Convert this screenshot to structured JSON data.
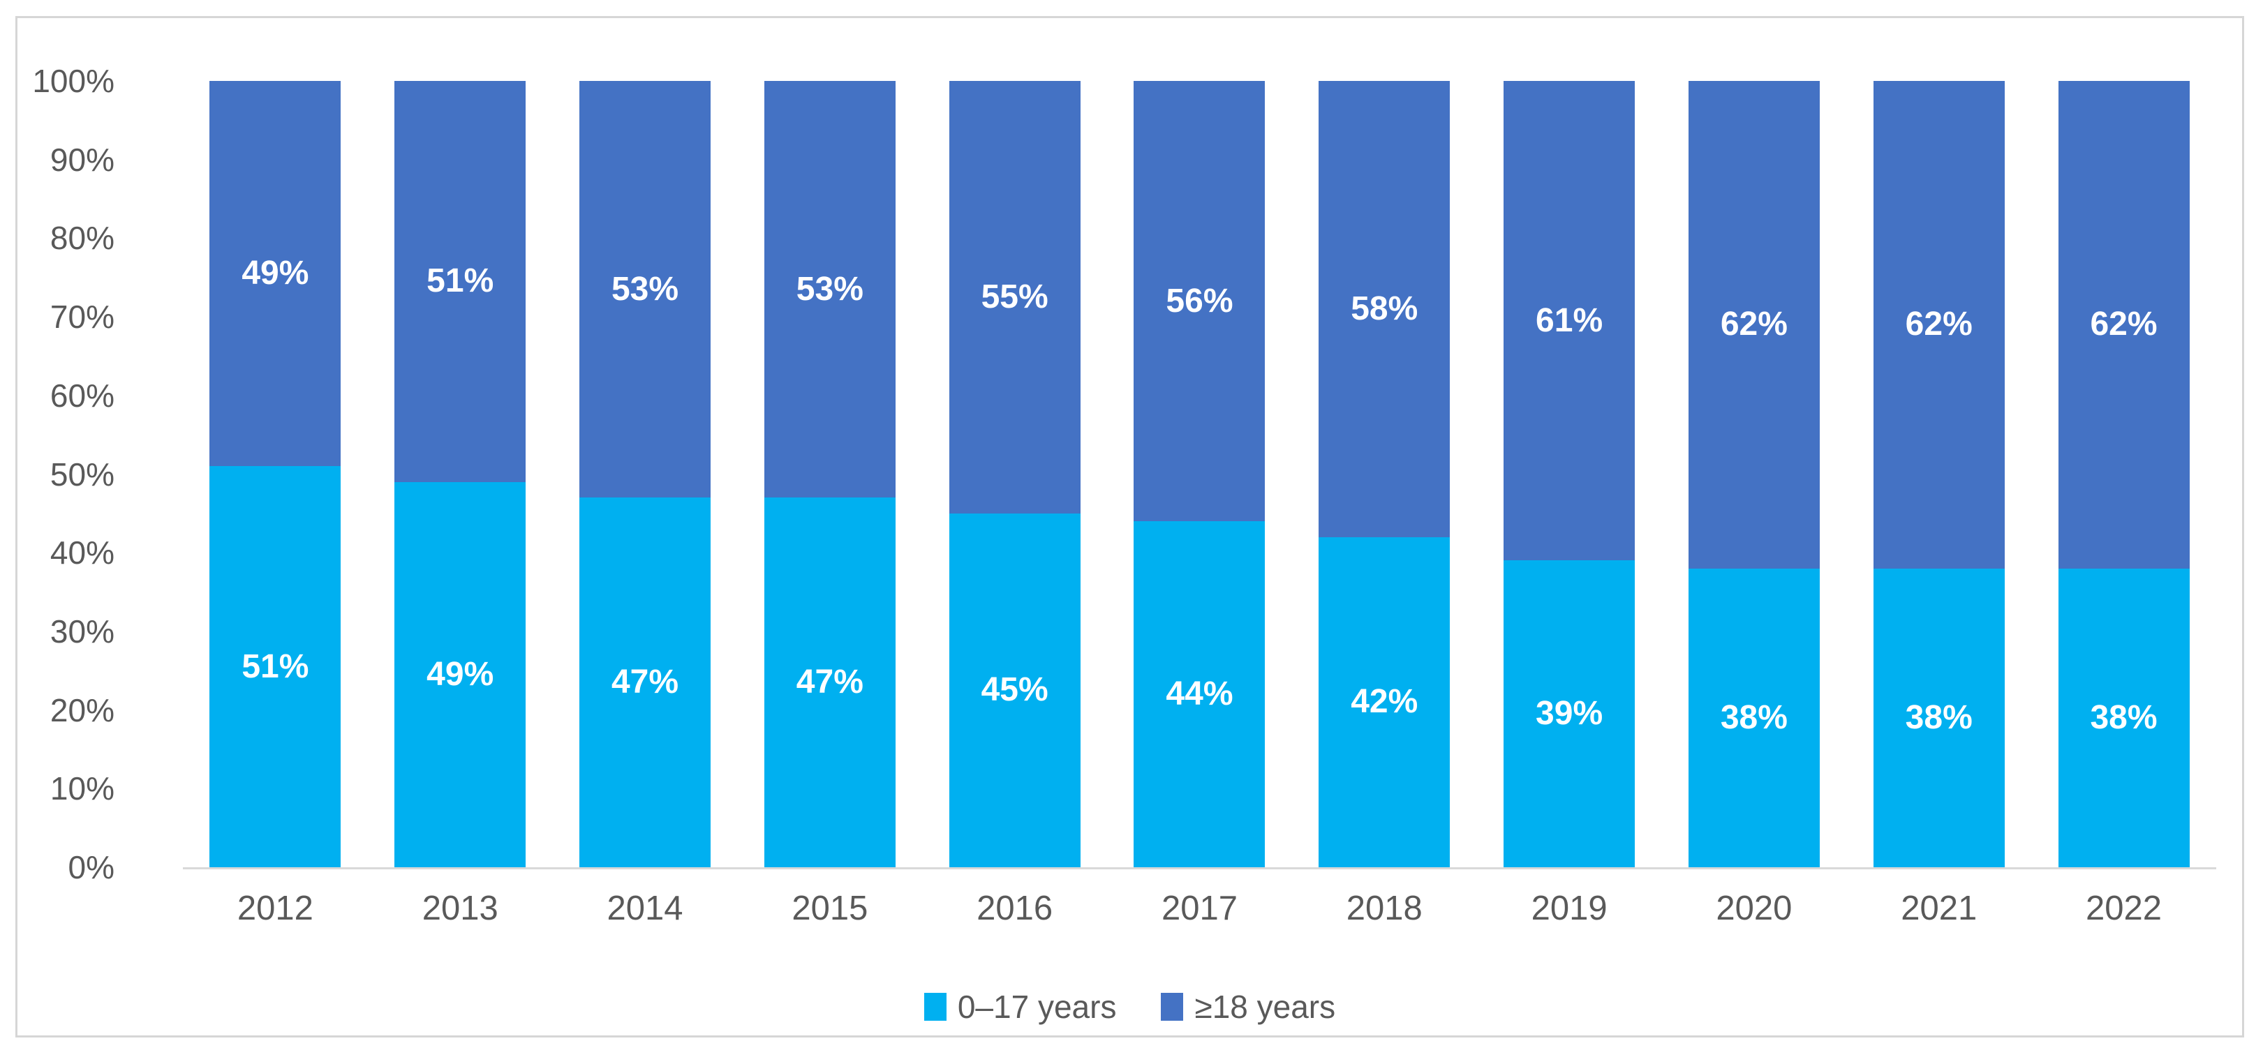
{
  "chart_data": {
    "type": "bar",
    "variant": "stacked-100",
    "title": "",
    "xlabel": "",
    "ylabel": "",
    "categories": [
      "2012",
      "2013",
      "2014",
      "2015",
      "2016",
      "2017",
      "2018",
      "2019",
      "2020",
      "2021",
      "2022"
    ],
    "series": [
      {
        "name": "0–17 years",
        "color": "#00b0f0",
        "values": [
          51,
          49,
          47,
          47,
          45,
          44,
          42,
          39,
          38,
          38,
          38
        ]
      },
      {
        "name": "≥18 years",
        "color": "#4472c4",
        "values": [
          49,
          51,
          53,
          53,
          55,
          56,
          58,
          61,
          62,
          62,
          62
        ]
      }
    ],
    "data_label_suffix": "%",
    "y_axis": {
      "min": 0,
      "max": 100,
      "step": 10,
      "tick_labels": [
        "0%",
        "10%",
        "20%",
        "30%",
        "40%",
        "50%",
        "60%",
        "70%",
        "80%",
        "90%",
        "100%"
      ]
    },
    "grid": false,
    "legend_position": "bottom"
  },
  "style": {
    "axis_text_color": "#595959",
    "data_label_color": "#ffffff",
    "axis_line_color": "#d9d9d9",
    "frame_border_color": "#d6d6d6",
    "background": "#ffffff"
  }
}
